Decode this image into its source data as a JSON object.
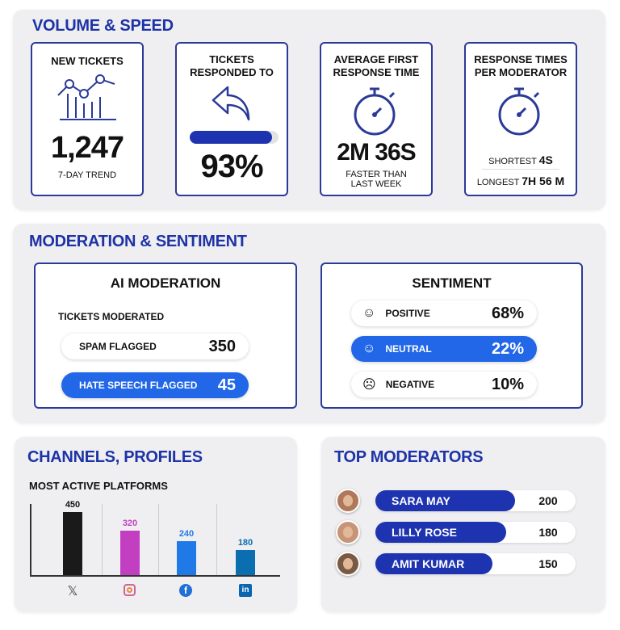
{
  "volume": {
    "title": "VOLUME & SPEED",
    "new_tickets": {
      "label": "NEW TICKETS",
      "value": "1,247",
      "sub": "7-DAY TREND",
      "icon": "line-bar-chart-icon"
    },
    "responded": {
      "label1": "TICKETS",
      "label2": "RESPONDED TO",
      "value": "93%",
      "progress": 93,
      "icon": "reply-arrow-icon"
    },
    "first_response": {
      "label1": "AVERAGE FIRST",
      "label2": "RESPONSE TIME",
      "value": "2M 36S",
      "sub1": "FASTER THAN",
      "sub2": "LAST WEEK",
      "icon": "stopwatch-icon"
    },
    "per_moderator": {
      "label1": "RESPONSE TIMES",
      "label2": "PER MODERATOR",
      "shortest_label": "SHORTEST",
      "shortest": "4S",
      "longest_label": "LONGEST",
      "longest": "7H 56 M",
      "icon": "stopwatch-icon"
    }
  },
  "moderation": {
    "title": "MODERATION & SENTIMENT",
    "ai": {
      "title": "AI MODERATION",
      "subtitle": "TICKETS MODERATED",
      "rows": [
        {
          "label": "SPAM FLAGGED",
          "value": "350"
        },
        {
          "label": "HATE SPEECH FLAGGED",
          "value": "45"
        }
      ]
    },
    "sentiment": {
      "title": "SENTIMENT",
      "rows": [
        {
          "label": "POSITIVE",
          "value": "68%",
          "icon": "smile-face-icon"
        },
        {
          "label": "NEUTRAL",
          "value": "22%",
          "icon": "neutral-face-icon"
        },
        {
          "label": "NEGATIVE",
          "value": "10%",
          "icon": "sad-face-icon"
        }
      ]
    }
  },
  "channels": {
    "title": "CHANNELS, PROFILES",
    "chart_data": {
      "type": "bar",
      "title": "MOST ACTIVE PLATFORMS",
      "categories": [
        "X",
        "Instagram",
        "Facebook",
        "LinkedIn"
      ],
      "values": [
        450,
        320,
        240,
        180
      ],
      "value_labels": [
        "450",
        "320",
        "240",
        "180"
      ],
      "colors": [
        "#1a1a1a",
        "#c23fc2",
        "#1f7ae8",
        "#0a6eb0"
      ],
      "ylim": [
        0,
        520
      ]
    }
  },
  "top_moderators": {
    "title": "TOP MODERATORS",
    "max": 200,
    "rows": [
      {
        "name": "SARA MAY",
        "value": "200"
      },
      {
        "name": "LILLY ROSE",
        "value": "180"
      },
      {
        "name": "AMIT KUMAR",
        "value": "150"
      }
    ]
  },
  "colors": {
    "primary": "#1d33a6",
    "accent_blue": "#2167e8"
  }
}
